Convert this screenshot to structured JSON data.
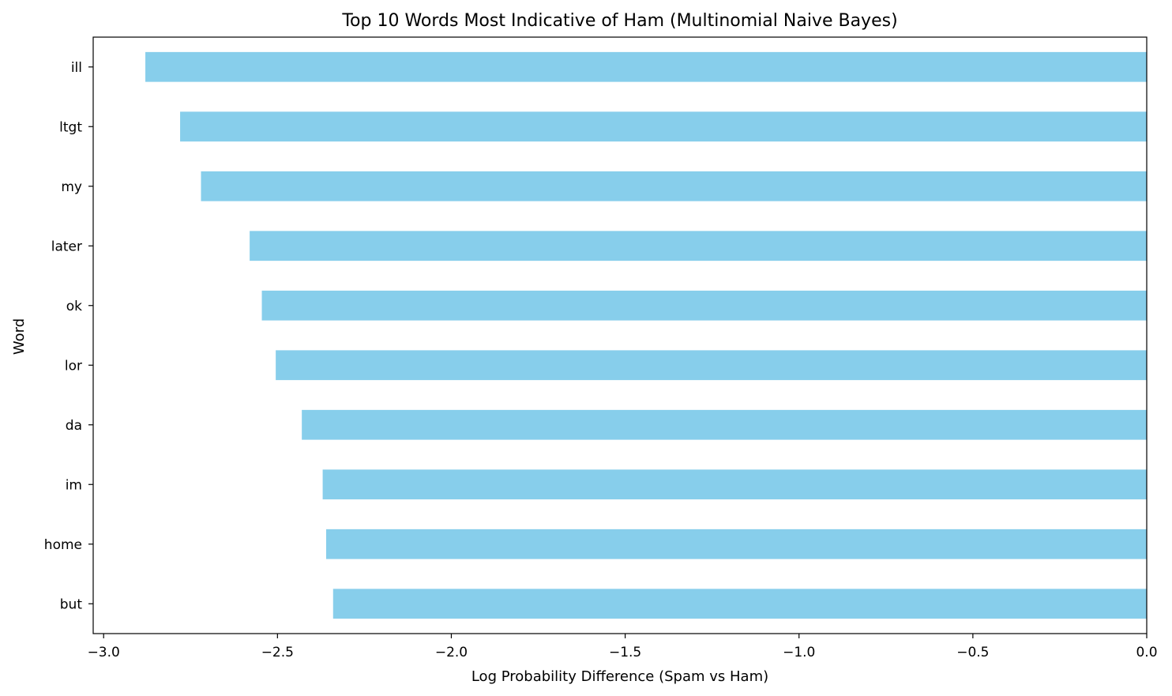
{
  "chart_data": {
    "type": "bar",
    "orientation": "horizontal",
    "title": "Top 10 Words Most Indicative of Ham (Multinomial Naive Bayes)",
    "xlabel": "Log Probability Difference (Spam vs Ham)",
    "ylabel": "Word",
    "categories": [
      "ill",
      "ltgt",
      "my",
      "later",
      "ok",
      "lor",
      "da",
      "im",
      "home",
      "but"
    ],
    "values": [
      -2.88,
      -2.78,
      -2.72,
      -2.58,
      -2.545,
      -2.505,
      -2.43,
      -2.37,
      -2.36,
      -2.34
    ],
    "xlim": [
      -3.03,
      0.0
    ],
    "xticks": [
      -3.0,
      -2.5,
      -2.0,
      -1.5,
      -1.0,
      -0.5,
      0.0
    ],
    "xtick_labels": [
      "−3.0",
      "−2.5",
      "−2.0",
      "−1.5",
      "−1.0",
      "−0.5",
      "0.0"
    ],
    "bar_color": "#87CEEB",
    "grid": false,
    "legend": "none"
  }
}
